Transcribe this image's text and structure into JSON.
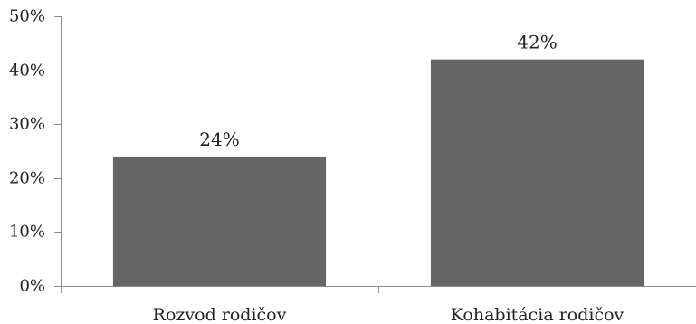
{
  "chart_data": {
    "type": "bar",
    "title": "",
    "xlabel": "",
    "ylabel": "",
    "categories": [
      "Rozvod rodičov",
      "Kohabitácia rodičov"
    ],
    "values": [
      24,
      42
    ],
    "data_labels": [
      "24%",
      "42%"
    ],
    "ylim": [
      0,
      50
    ],
    "y_ticks": [
      0,
      10,
      20,
      30,
      40,
      50
    ],
    "y_tick_labels": [
      "0%",
      "10%",
      "20%",
      "30%",
      "40%",
      "50%"
    ],
    "grid": false,
    "legend": "none",
    "bar_color": "#666666"
  }
}
